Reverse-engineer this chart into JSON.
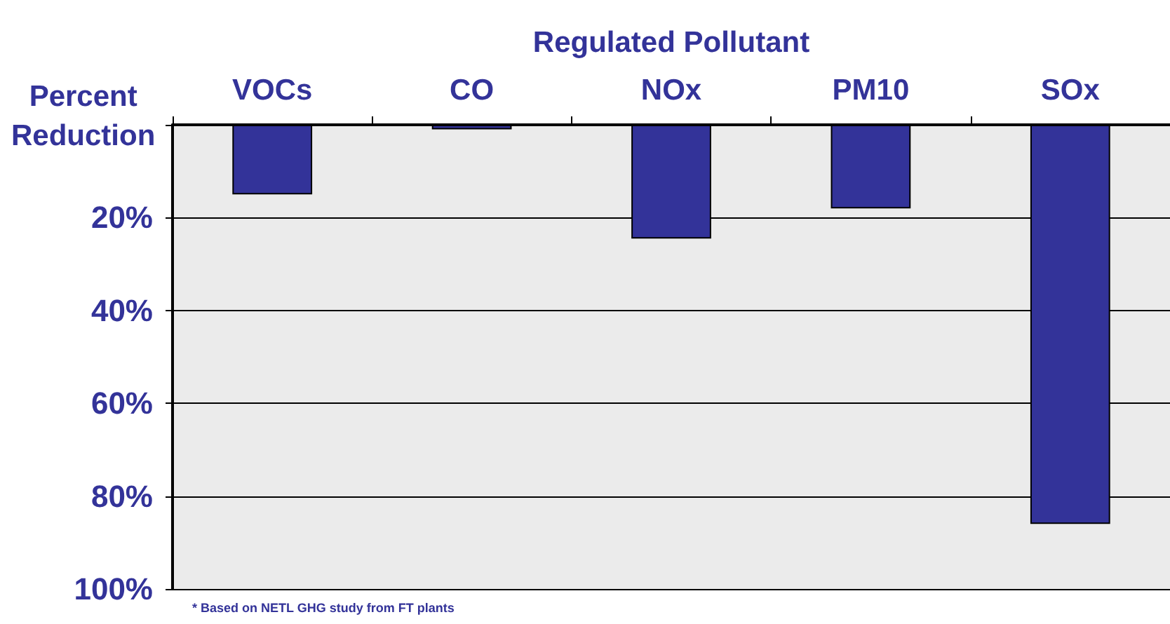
{
  "chart_data": {
    "type": "bar",
    "xlabel": "Regulated Pollutant",
    "ylabel": "Percent Reduction",
    "categories": [
      "VOCs",
      "CO",
      "NOx",
      "PM10",
      "SOx"
    ],
    "values": [
      15,
      1,
      24.5,
      18,
      86
    ],
    "color": "#333399",
    "ylim": [
      100,
      0
    ],
    "yticks": [
      {
        "value": 0,
        "label": null
      },
      {
        "value": 20,
        "label": "20%"
      },
      {
        "value": 40,
        "label": "40%"
      },
      {
        "value": 60,
        "label": "60%"
      },
      {
        "value": 80,
        "label": "80%"
      },
      {
        "value": 100,
        "label": "100%"
      }
    ],
    "grid": "y",
    "annotations": [
      "* Based on NETL GHG study from FT plants"
    ]
  }
}
